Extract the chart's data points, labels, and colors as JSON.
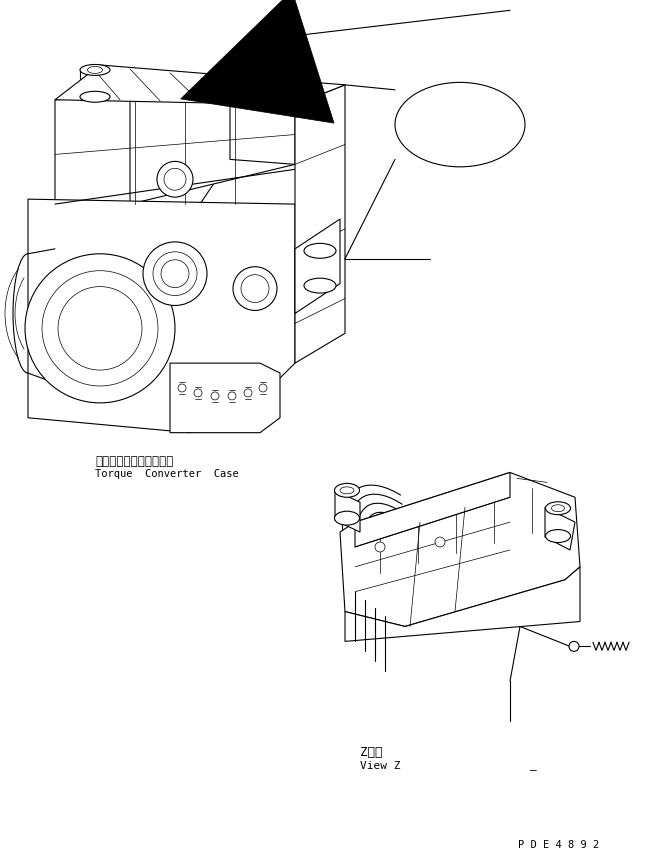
{
  "bg_color": "#ffffff",
  "line_color": "#000000",
  "label_japanese_1": "トルクコンバータケース",
  "label_english_1": "Torque  Converter  Case",
  "label_z_japanese": "Z　視",
  "label_z_english": "View Z",
  "label_z": "Z",
  "part_number": "P D E 4 8 9 2",
  "underscore": "_",
  "fig_width": 6.45,
  "fig_height": 8.66,
  "dpi": 100
}
